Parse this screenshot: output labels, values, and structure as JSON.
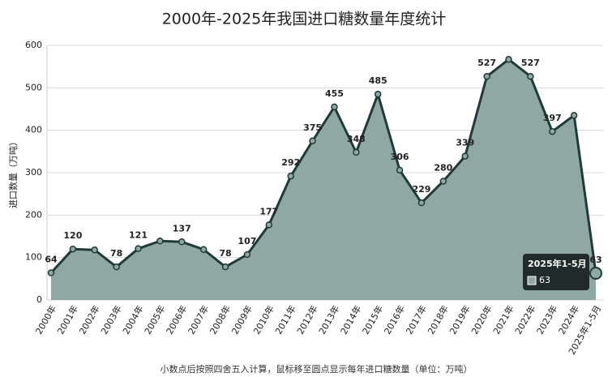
{
  "chart_data": {
    "type": "area",
    "title": "2000年-2025年我国进口糖数量年度统计",
    "y_label": "进口数量（万吨）",
    "note": "小数点后按照四舍五入计算，鼠标移至圆点显示每年进口糖数量（单位：万吨）",
    "categories": [
      "2000年",
      "2001年",
      "2002年",
      "2003年",
      "2004年",
      "2005年",
      "2006年",
      "2007年",
      "2008年",
      "2009年",
      "2010年",
      "2011年",
      "2012年",
      "2013年",
      "2014年",
      "2015年",
      "2016年",
      "2017年",
      "2018年",
      "2019年",
      "2020年",
      "2021年",
      "2022年",
      "2023年",
      "2024年",
      "2025年1-5月"
    ],
    "values": [
      64,
      120,
      118,
      78,
      121,
      139,
      137,
      119,
      78,
      107,
      177,
      292,
      375,
      455,
      348,
      485,
      306,
      229,
      280,
      339,
      527,
      567,
      527,
      397,
      435,
      63
    ],
    "value_labels": [
      "64",
      "120",
      null,
      "78",
      "121",
      null,
      "137",
      null,
      "78",
      "107",
      "177",
      "292",
      "375",
      "455",
      "348",
      "485",
      "306",
      "229",
      "280",
      "339",
      "527",
      null,
      "527",
      "397",
      null,
      "63"
    ],
    "color": "#8fa8a4",
    "line_color": "#1f3a37",
    "ylim": [
      0,
      600
    ],
    "yticks": [
      0,
      100,
      200,
      300,
      400,
      500,
      600
    ],
    "grid": true,
    "tooltip_index": 25
  }
}
